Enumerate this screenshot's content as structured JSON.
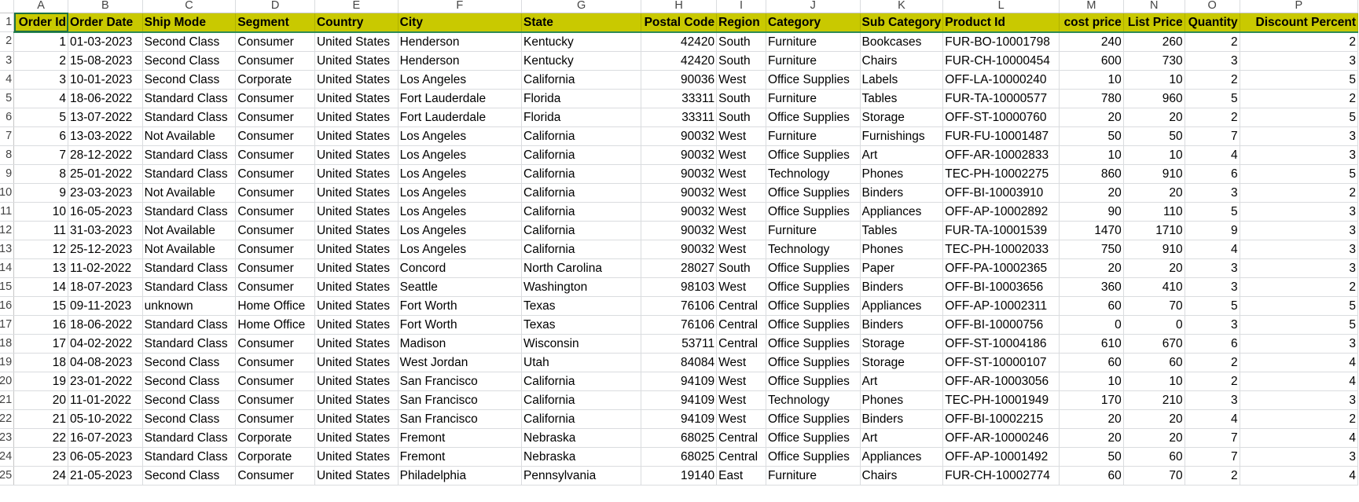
{
  "columns": [
    "A",
    "B",
    "C",
    "D",
    "E",
    "F",
    "G",
    "H",
    "I",
    "J",
    "K",
    "L",
    "M",
    "N",
    "O",
    "P"
  ],
  "headers": [
    "Order Id",
    "Order Date",
    "Ship Mode",
    "Segment",
    "Country",
    "City",
    "State",
    "Postal Code",
    "Region",
    "Category",
    "Sub Category",
    "Product Id",
    "cost price",
    "List Price",
    "Quantity",
    "Discount Percent"
  ],
  "row_numbers": [
    "1",
    "2",
    "3",
    "4",
    "5",
    "6",
    "7",
    "8",
    "9",
    "10",
    "11",
    "12",
    "13",
    "14",
    "15",
    "16",
    "17",
    "18",
    "19",
    "20",
    "21",
    "22",
    "23",
    "24",
    "25"
  ],
  "rows": [
    [
      "1",
      "01-03-2023",
      "Second Class",
      "Consumer",
      "United States",
      "Henderson",
      "Kentucky",
      "42420",
      "South",
      "Furniture",
      "Bookcases",
      "FUR-BO-10001798",
      "240",
      "260",
      "2",
      "2"
    ],
    [
      "2",
      "15-08-2023",
      "Second Class",
      "Consumer",
      "United States",
      "Henderson",
      "Kentucky",
      "42420",
      "South",
      "Furniture",
      "Chairs",
      "FUR-CH-10000454",
      "600",
      "730",
      "3",
      "3"
    ],
    [
      "3",
      "10-01-2023",
      "Second Class",
      "Corporate",
      "United States",
      "Los Angeles",
      "California",
      "90036",
      "West",
      "Office Supplies",
      "Labels",
      "OFF-LA-10000240",
      "10",
      "10",
      "2",
      "5"
    ],
    [
      "4",
      "18-06-2022",
      "Standard Class",
      "Consumer",
      "United States",
      "Fort Lauderdale",
      "Florida",
      "33311",
      "South",
      "Furniture",
      "Tables",
      "FUR-TA-10000577",
      "780",
      "960",
      "5",
      "2"
    ],
    [
      "5",
      "13-07-2022",
      "Standard Class",
      "Consumer",
      "United States",
      "Fort Lauderdale",
      "Florida",
      "33311",
      "South",
      "Office Supplies",
      "Storage",
      "OFF-ST-10000760",
      "20",
      "20",
      "2",
      "5"
    ],
    [
      "6",
      "13-03-2022",
      "Not Available",
      "Consumer",
      "United States",
      "Los Angeles",
      "California",
      "90032",
      "West",
      "Furniture",
      "Furnishings",
      "FUR-FU-10001487",
      "50",
      "50",
      "7",
      "3"
    ],
    [
      "7",
      "28-12-2022",
      "Standard Class",
      "Consumer",
      "United States",
      "Los Angeles",
      "California",
      "90032",
      "West",
      "Office Supplies",
      "Art",
      "OFF-AR-10002833",
      "10",
      "10",
      "4",
      "3"
    ],
    [
      "8",
      "25-01-2022",
      "Standard Class",
      "Consumer",
      "United States",
      "Los Angeles",
      "California",
      "90032",
      "West",
      "Technology",
      "Phones",
      "TEC-PH-10002275",
      "860",
      "910",
      "6",
      "5"
    ],
    [
      "9",
      "23-03-2023",
      "Not Available",
      "Consumer",
      "United States",
      "Los Angeles",
      "California",
      "90032",
      "West",
      "Office Supplies",
      "Binders",
      "OFF-BI-10003910",
      "20",
      "20",
      "3",
      "2"
    ],
    [
      "10",
      "16-05-2023",
      "Standard Class",
      "Consumer",
      "United States",
      "Los Angeles",
      "California",
      "90032",
      "West",
      "Office Supplies",
      "Appliances",
      "OFF-AP-10002892",
      "90",
      "110",
      "5",
      "3"
    ],
    [
      "11",
      "31-03-2023",
      "Not Available",
      "Consumer",
      "United States",
      "Los Angeles",
      "California",
      "90032",
      "West",
      "Furniture",
      "Tables",
      "FUR-TA-10001539",
      "1470",
      "1710",
      "9",
      "3"
    ],
    [
      "12",
      "25-12-2023",
      "Not Available",
      "Consumer",
      "United States",
      "Los Angeles",
      "California",
      "90032",
      "West",
      "Technology",
      "Phones",
      "TEC-PH-10002033",
      "750",
      "910",
      "4",
      "3"
    ],
    [
      "13",
      "11-02-2022",
      "Standard Class",
      "Consumer",
      "United States",
      "Concord",
      "North Carolina",
      "28027",
      "South",
      "Office Supplies",
      "Paper",
      "OFF-PA-10002365",
      "20",
      "20",
      "3",
      "3"
    ],
    [
      "14",
      "18-07-2023",
      "Standard Class",
      "Consumer",
      "United States",
      "Seattle",
      "Washington",
      "98103",
      "West",
      "Office Supplies",
      "Binders",
      "OFF-BI-10003656",
      "360",
      "410",
      "3",
      "2"
    ],
    [
      "15",
      "09-11-2023",
      "unknown",
      "Home Office",
      "United States",
      "Fort Worth",
      "Texas",
      "76106",
      "Central",
      "Office Supplies",
      "Appliances",
      "OFF-AP-10002311",
      "60",
      "70",
      "5",
      "5"
    ],
    [
      "16",
      "18-06-2022",
      "Standard Class",
      "Home Office",
      "United States",
      "Fort Worth",
      "Texas",
      "76106",
      "Central",
      "Office Supplies",
      "Binders",
      "OFF-BI-10000756",
      "0",
      "0",
      "3",
      "5"
    ],
    [
      "17",
      "04-02-2022",
      "Standard Class",
      "Consumer",
      "United States",
      "Madison",
      "Wisconsin",
      "53711",
      "Central",
      "Office Supplies",
      "Storage",
      "OFF-ST-10004186",
      "610",
      "670",
      "6",
      "3"
    ],
    [
      "18",
      "04-08-2023",
      "Second Class",
      "Consumer",
      "United States",
      "West Jordan",
      "Utah",
      "84084",
      "West",
      "Office Supplies",
      "Storage",
      "OFF-ST-10000107",
      "60",
      "60",
      "2",
      "4"
    ],
    [
      "19",
      "23-01-2022",
      "Second Class",
      "Consumer",
      "United States",
      "San Francisco",
      "California",
      "94109",
      "West",
      "Office Supplies",
      "Art",
      "OFF-AR-10003056",
      "10",
      "10",
      "2",
      "4"
    ],
    [
      "20",
      "11-01-2022",
      "Second Class",
      "Consumer",
      "United States",
      "San Francisco",
      "California",
      "94109",
      "West",
      "Technology",
      "Phones",
      "TEC-PH-10001949",
      "170",
      "210",
      "3",
      "3"
    ],
    [
      "21",
      "05-10-2022",
      "Second Class",
      "Consumer",
      "United States",
      "San Francisco",
      "California",
      "94109",
      "West",
      "Office Supplies",
      "Binders",
      "OFF-BI-10002215",
      "20",
      "20",
      "4",
      "2"
    ],
    [
      "22",
      "16-07-2023",
      "Standard Class",
      "Corporate",
      "United States",
      "Fremont",
      "Nebraska",
      "68025",
      "Central",
      "Office Supplies",
      "Art",
      "OFF-AR-10000246",
      "20",
      "20",
      "7",
      "4"
    ],
    [
      "23",
      "06-05-2023",
      "Standard Class",
      "Corporate",
      "United States",
      "Fremont",
      "Nebraska",
      "68025",
      "Central",
      "Office Supplies",
      "Appliances",
      "OFF-AP-10001492",
      "50",
      "60",
      "7",
      "3"
    ],
    [
      "24",
      "21-05-2023",
      "Second Class",
      "Consumer",
      "United States",
      "Philadelphia",
      "Pennsylvania",
      "19140",
      "East",
      "Furniture",
      "Chairs",
      "FUR-CH-10002774",
      "60",
      "70",
      "2",
      "4"
    ]
  ]
}
